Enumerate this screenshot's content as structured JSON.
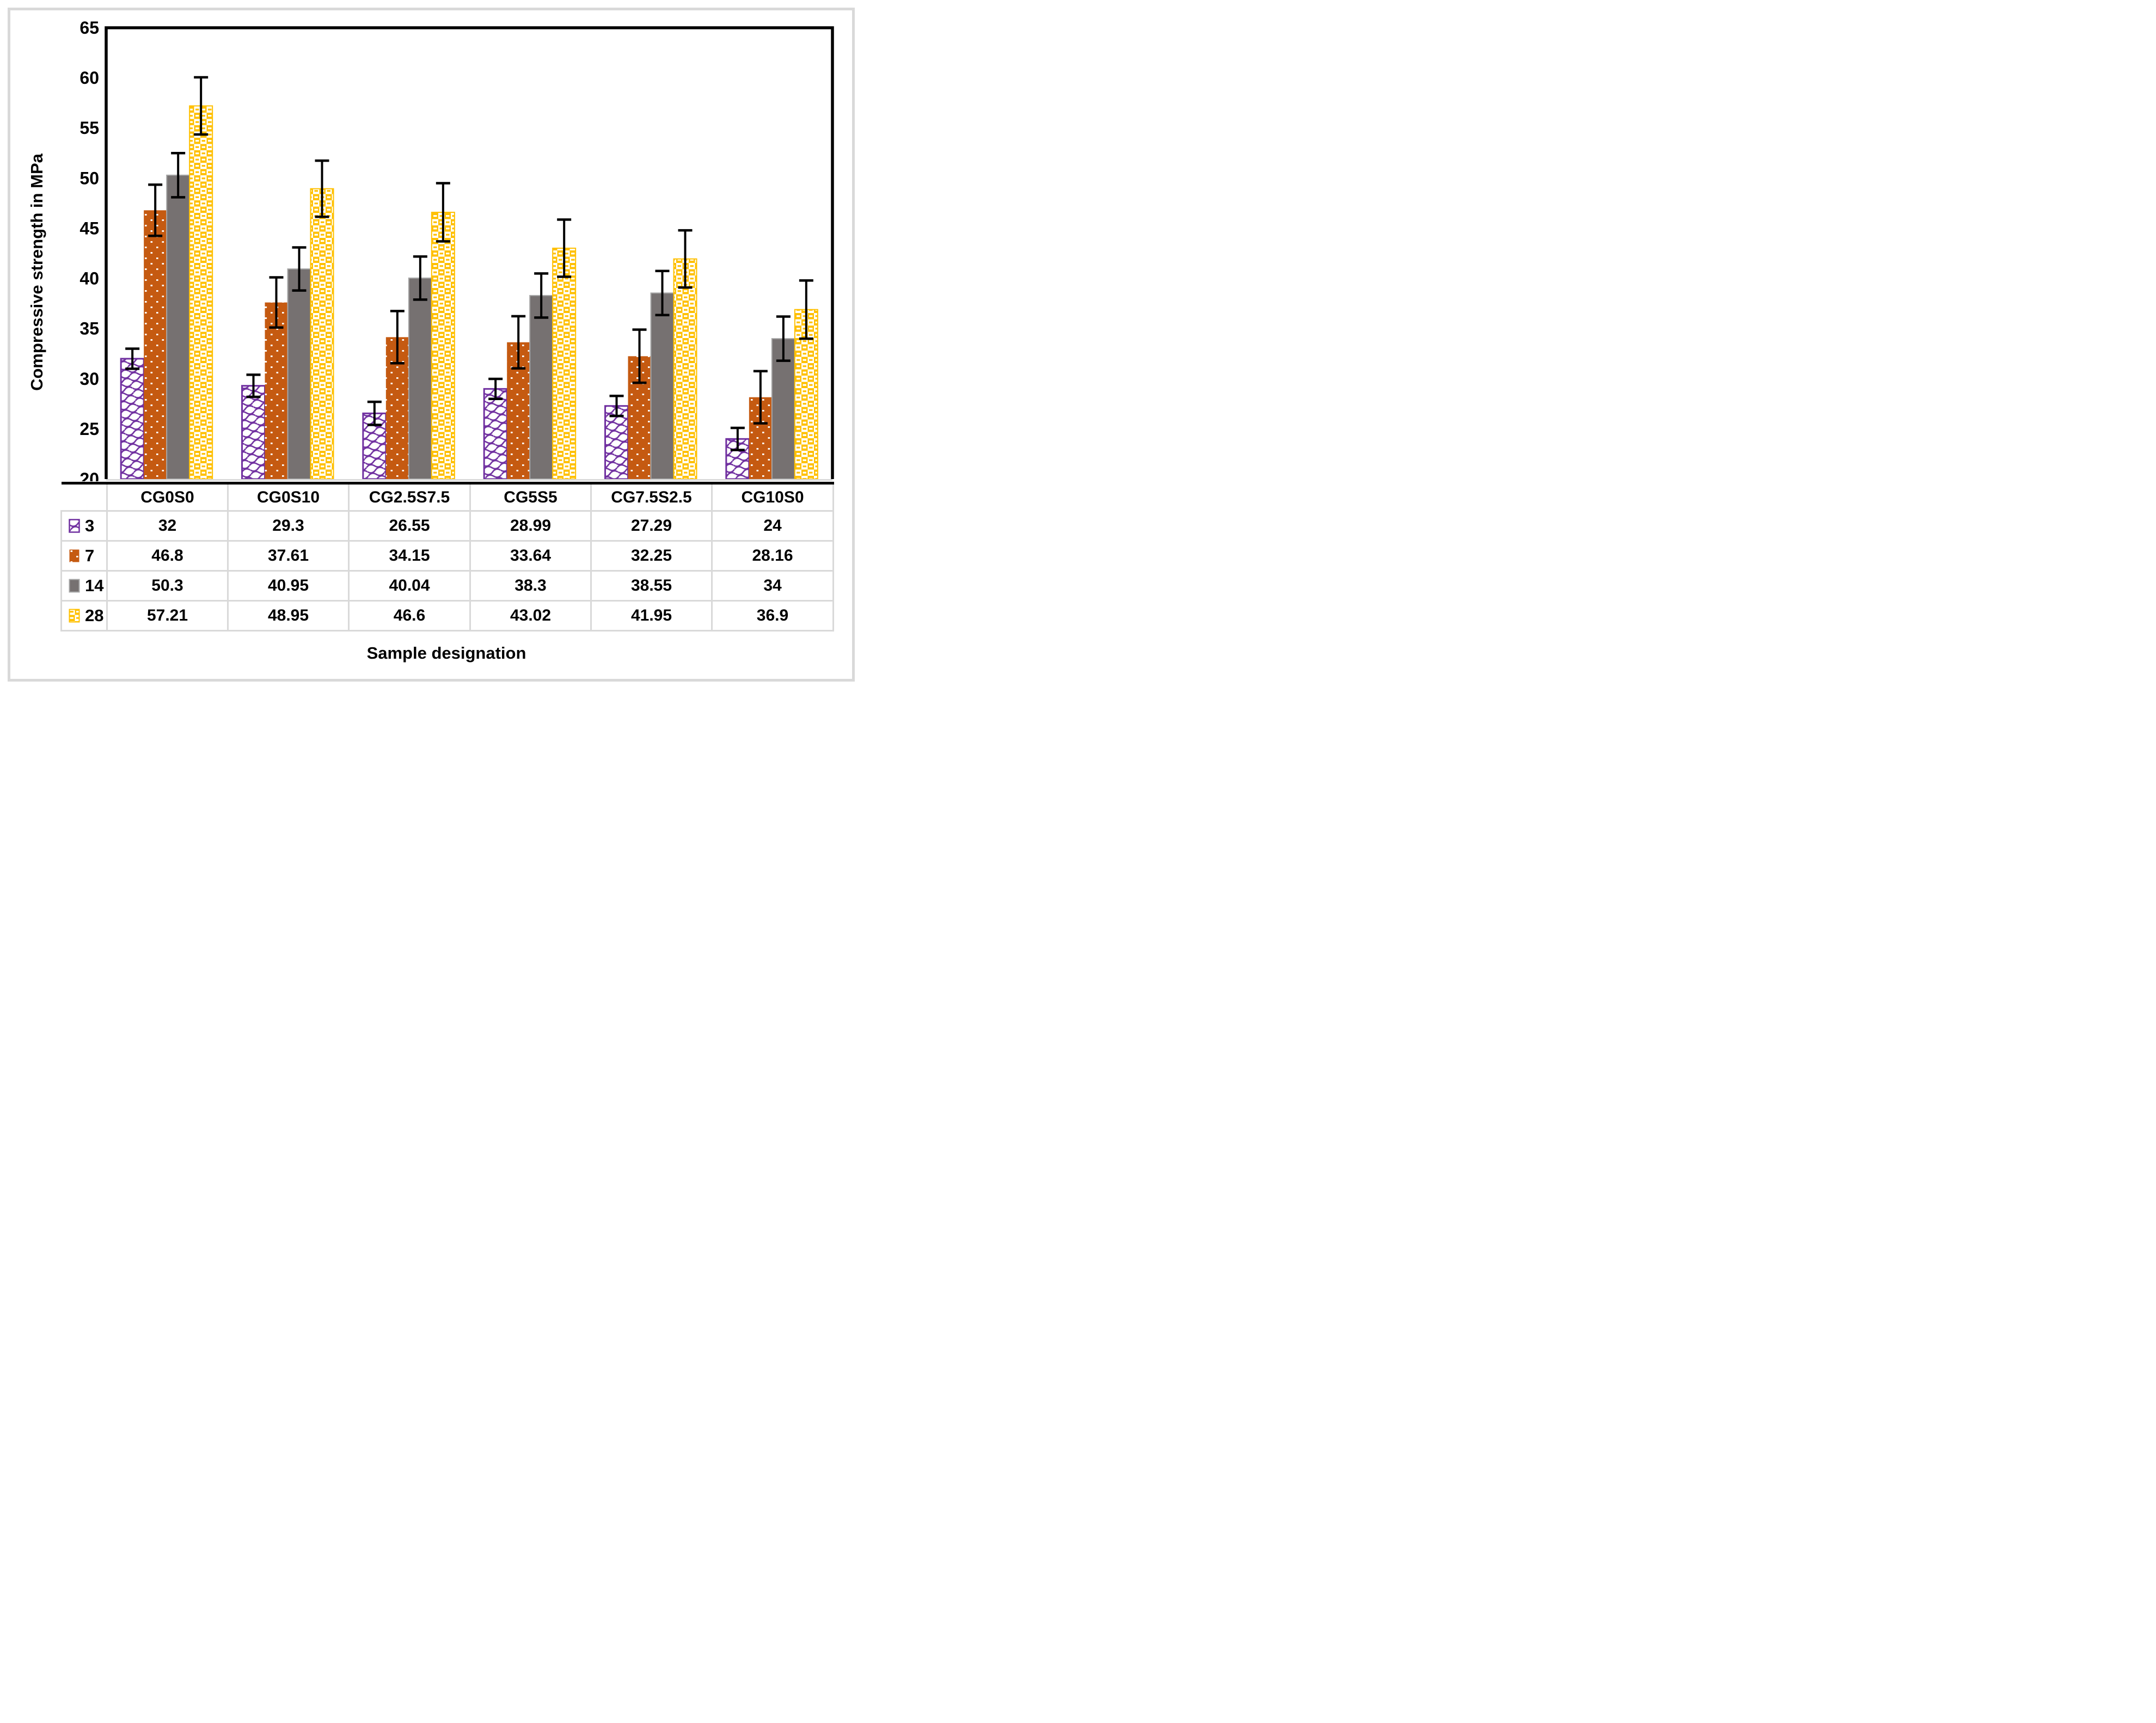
{
  "chart_data": {
    "type": "bar",
    "title": "",
    "xlabel": "Sample designation",
    "ylabel": "Compressive strength in MPa",
    "ylim": [
      20,
      65
    ],
    "ytick_step": 5,
    "grid": false,
    "legend_position": "table-row-headers",
    "categories": [
      "CG0S0",
      "CG0S10",
      "CG2.5S7.5",
      "CG5S5",
      "CG7.5S2.5",
      "CG10S0"
    ],
    "series": [
      {
        "name": "3",
        "values": [
          32,
          29.3,
          26.55,
          28.99,
          27.29,
          24
        ],
        "errors": [
          1.0,
          1.1,
          1.15,
          1.0,
          1.0,
          1.1
        ],
        "color": "#7030A0",
        "border": "#7030A0",
        "fill_pattern": "wavy-lattice-on-white"
      },
      {
        "name": "7",
        "values": [
          46.8,
          37.61,
          34.15,
          33.64,
          32.25,
          28.16
        ],
        "errors": [
          2.55,
          2.5,
          2.6,
          2.6,
          2.65,
          2.6
        ],
        "color": "#C55A11",
        "border": "none",
        "fill_pattern": "white-dots"
      },
      {
        "name": "14",
        "values": [
          50.3,
          40.95,
          40.04,
          38.3,
          38.55,
          34
        ],
        "errors": [
          2.2,
          2.15,
          2.15,
          2.2,
          2.2,
          2.2
        ],
        "color": "#767171",
        "border": "#A6A6A6",
        "fill_pattern": "solid"
      },
      {
        "name": "28",
        "values": [
          57.21,
          48.95,
          46.6,
          43.02,
          41.95,
          36.9
        ],
        "errors": [
          2.85,
          2.8,
          2.9,
          2.85,
          2.85,
          2.9
        ],
        "color": "#FFC000",
        "border": "#FFC000",
        "fill_pattern": "basket-weave"
      }
    ],
    "error_bar_color": "#000000",
    "axis_color": "#000000",
    "baseline_color": "#d9d9d9",
    "table_grid_color": "#d9d9d9",
    "outer_frame_color": "#d9d9d9"
  }
}
